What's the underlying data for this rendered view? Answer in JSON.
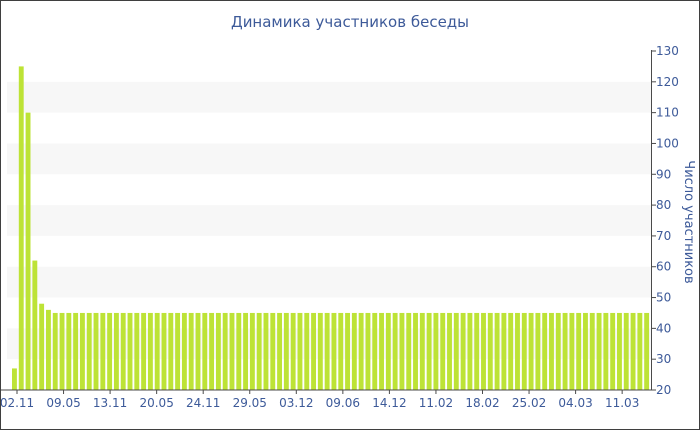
{
  "chart_data": {
    "type": "bar",
    "title": "Динамика участников беседы",
    "xlabel": "",
    "ylabel": "Число участников",
    "ylim": [
      20,
      130
    ],
    "y_ticks": [
      20,
      30,
      40,
      50,
      60,
      70,
      80,
      90,
      100,
      110,
      120,
      130
    ],
    "y_axis_side": "right",
    "grid": "alternating horizontal bands",
    "x_tick_labels": [
      "02.11",
      "09.05",
      "13.11",
      "20.05",
      "24.11",
      "29.05",
      "03.12",
      "09.06",
      "14.12",
      "11.02",
      "18.02",
      "25.02",
      "04.03",
      "11.03"
    ],
    "bar_color": "#bde336",
    "series": [
      {
        "values": [
          27,
          125,
          110,
          62,
          48,
          46,
          45,
          45,
          45,
          45,
          45,
          45,
          45,
          45,
          45,
          45,
          45,
          45,
          45,
          45,
          45,
          45,
          45,
          45,
          45,
          45,
          45,
          45,
          45,
          45,
          45,
          45,
          45,
          45,
          45,
          45,
          45,
          45,
          45,
          45,
          45,
          45,
          45,
          45,
          45,
          45,
          45,
          45,
          45,
          45,
          45,
          45,
          45,
          45,
          45,
          45,
          45,
          45,
          45,
          45,
          45,
          45,
          45,
          45,
          45,
          45,
          45,
          45,
          45,
          45,
          45,
          45,
          45,
          45,
          45,
          45,
          45,
          45,
          45,
          45,
          45,
          45,
          45,
          45,
          45,
          45,
          45,
          45,
          45,
          45,
          45,
          45,
          45,
          45
        ]
      }
    ]
  }
}
